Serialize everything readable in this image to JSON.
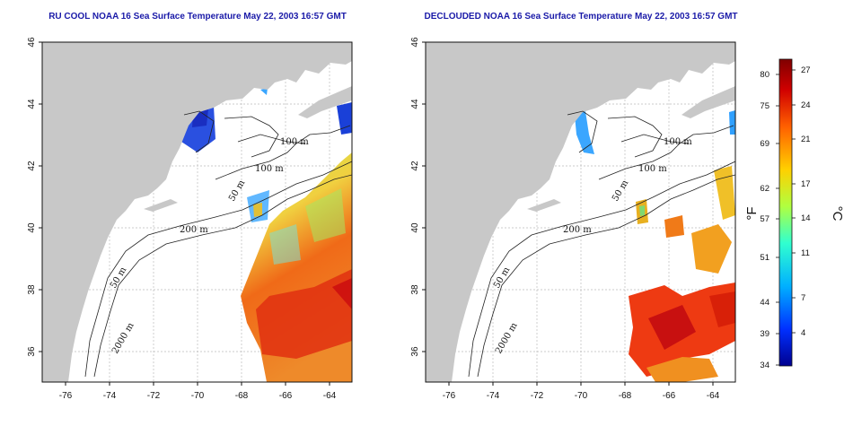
{
  "panels": [
    {
      "title": "RU COOL NOAA 16 Sea Surface Temperature May 22, 2003 16:57 GMT",
      "contours": [
        "100 m",
        "100 m",
        "50 m",
        "200 m",
        "50 m",
        "2000 m"
      ]
    },
    {
      "title": "DECLOUDED NOAA 16 Sea Surface Temperature May 22, 2003 16:57 GMT",
      "contours": [
        "100 m",
        "100 m",
        "50 m",
        "200 m",
        "50 m",
        "2000 m"
      ]
    }
  ],
  "axes": {
    "x_ticks": [
      "-76",
      "-74",
      "-72",
      "-70",
      "-68",
      "-66",
      "-64"
    ],
    "y_ticks": [
      "46",
      "44",
      "42",
      "40",
      "38",
      "36"
    ]
  },
  "colorbar": {
    "fahrenheit_label": "°F",
    "celsius_label": "°C",
    "fahrenheit_ticks": [
      "80",
      "75",
      "69",
      "62",
      "57",
      "51",
      "44",
      "39",
      "34"
    ],
    "celsius_ticks": [
      "27",
      "24",
      "21",
      "17",
      "14",
      "11",
      "7",
      "4"
    ],
    "colors": [
      "#00008f",
      "#0030ff",
      "#00b0ff",
      "#30ffd0",
      "#b0ff40",
      "#ffd000",
      "#ff6000",
      "#d00000",
      "#800000"
    ]
  },
  "colors": {
    "land": "#c8c8c8",
    "water": "#ffffff",
    "title": "#1a1aa8"
  }
}
